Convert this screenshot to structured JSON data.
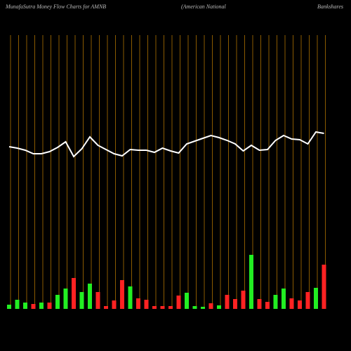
{
  "chart_data": {
    "type": "bar",
    "title": "MunafaSutra  Money Flow  Charts for AMNB",
    "subtitle": "(American  National",
    "subtitle2": "Bankshares",
    "bar_values": [
      6,
      13,
      9,
      7,
      9,
      9,
      20,
      29,
      44,
      24,
      36,
      24,
      4,
      12,
      41,
      32,
      15,
      13,
      4,
      4,
      4,
      19,
      23,
      4,
      3,
      8,
      5,
      20,
      14,
      26,
      77,
      14,
      10,
      20,
      29,
      15,
      12,
      24,
      30,
      63
    ],
    "bar_colors": [
      "#22ee22",
      "#22ee22",
      "#22ee22",
      "#ff2222",
      "#22ee22",
      "#ff2222",
      "#22ee22",
      "#22ee22",
      "#ff2222",
      "#22ee22",
      "#22ee22",
      "#ff2222",
      "#ff2222",
      "#ff2222",
      "#ff2222",
      "#22ee22",
      "#ff2222",
      "#ff2222",
      "#ff2222",
      "#ff2222",
      "#ff2222",
      "#ff2222",
      "#22ee22",
      "#22ee22",
      "#22ee22",
      "#ff2222",
      "#22ee22",
      "#ff2222",
      "#ff2222",
      "#ff2222",
      "#22ee22",
      "#ff2222",
      "#ff2222",
      "#22ee22",
      "#22ee22",
      "#ff2222",
      "#ff2222",
      "#ff2222",
      "#22ee22",
      "#ff2222"
    ],
    "line_values": [
      231,
      229,
      226,
      221,
      221,
      224,
      230,
      238,
      217,
      228,
      245,
      233,
      227,
      221,
      218,
      227,
      226,
      226,
      223,
      229,
      225,
      222,
      235,
      239,
      243,
      247,
      244,
      240,
      235,
      225,
      233,
      226,
      227,
      240,
      247,
      242,
      241,
      235,
      252,
      250
    ],
    "line_color": "#ffffff",
    "gridline_color": "#8a5a00"
  }
}
